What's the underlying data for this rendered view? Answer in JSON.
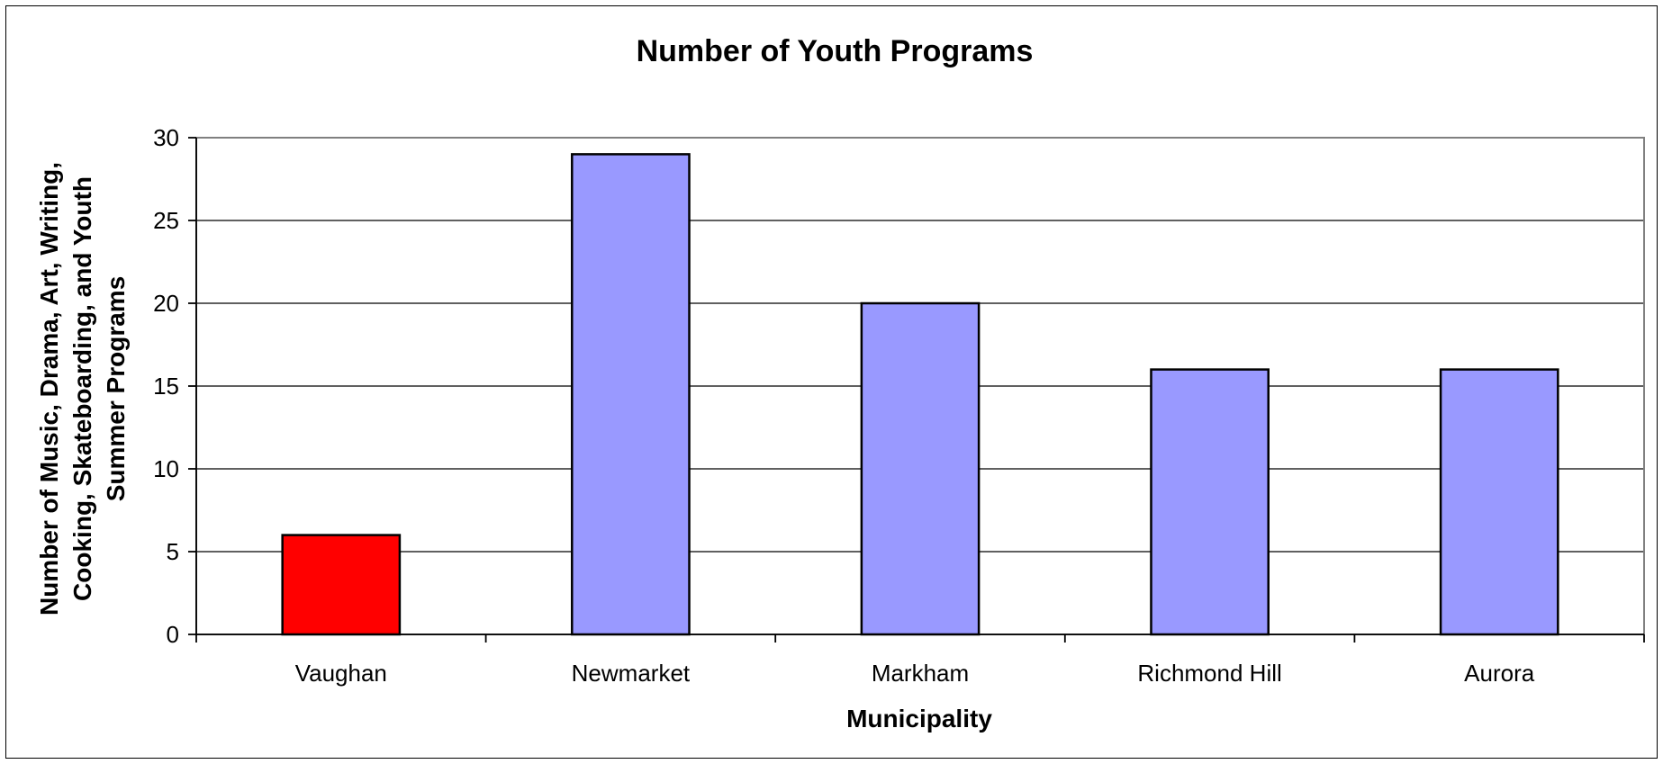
{
  "chart_data": {
    "type": "bar",
    "title": "Number of Youth Programs",
    "xlabel": "Municipality",
    "ylabel_lines": [
      "Number of Music, Drama, Art, Writing,",
      "Cooking, Skateboarding, and Youth",
      "Summer Programs"
    ],
    "categories": [
      "Vaughan",
      "Newmarket",
      "Markham",
      "Richmond Hill",
      "Aurora"
    ],
    "values": [
      6,
      29,
      20,
      16,
      16
    ],
    "ylim": [
      0,
      30
    ],
    "yticks": [
      0,
      5,
      10,
      15,
      20,
      25,
      30
    ],
    "grid": true,
    "legend": "none",
    "colors": {
      "highlight": "#ff0000",
      "default": "#9999ff",
      "bar_border": "#000000",
      "grid": "#000000",
      "plot_border": "#808080"
    },
    "highlight_index": 0
  }
}
